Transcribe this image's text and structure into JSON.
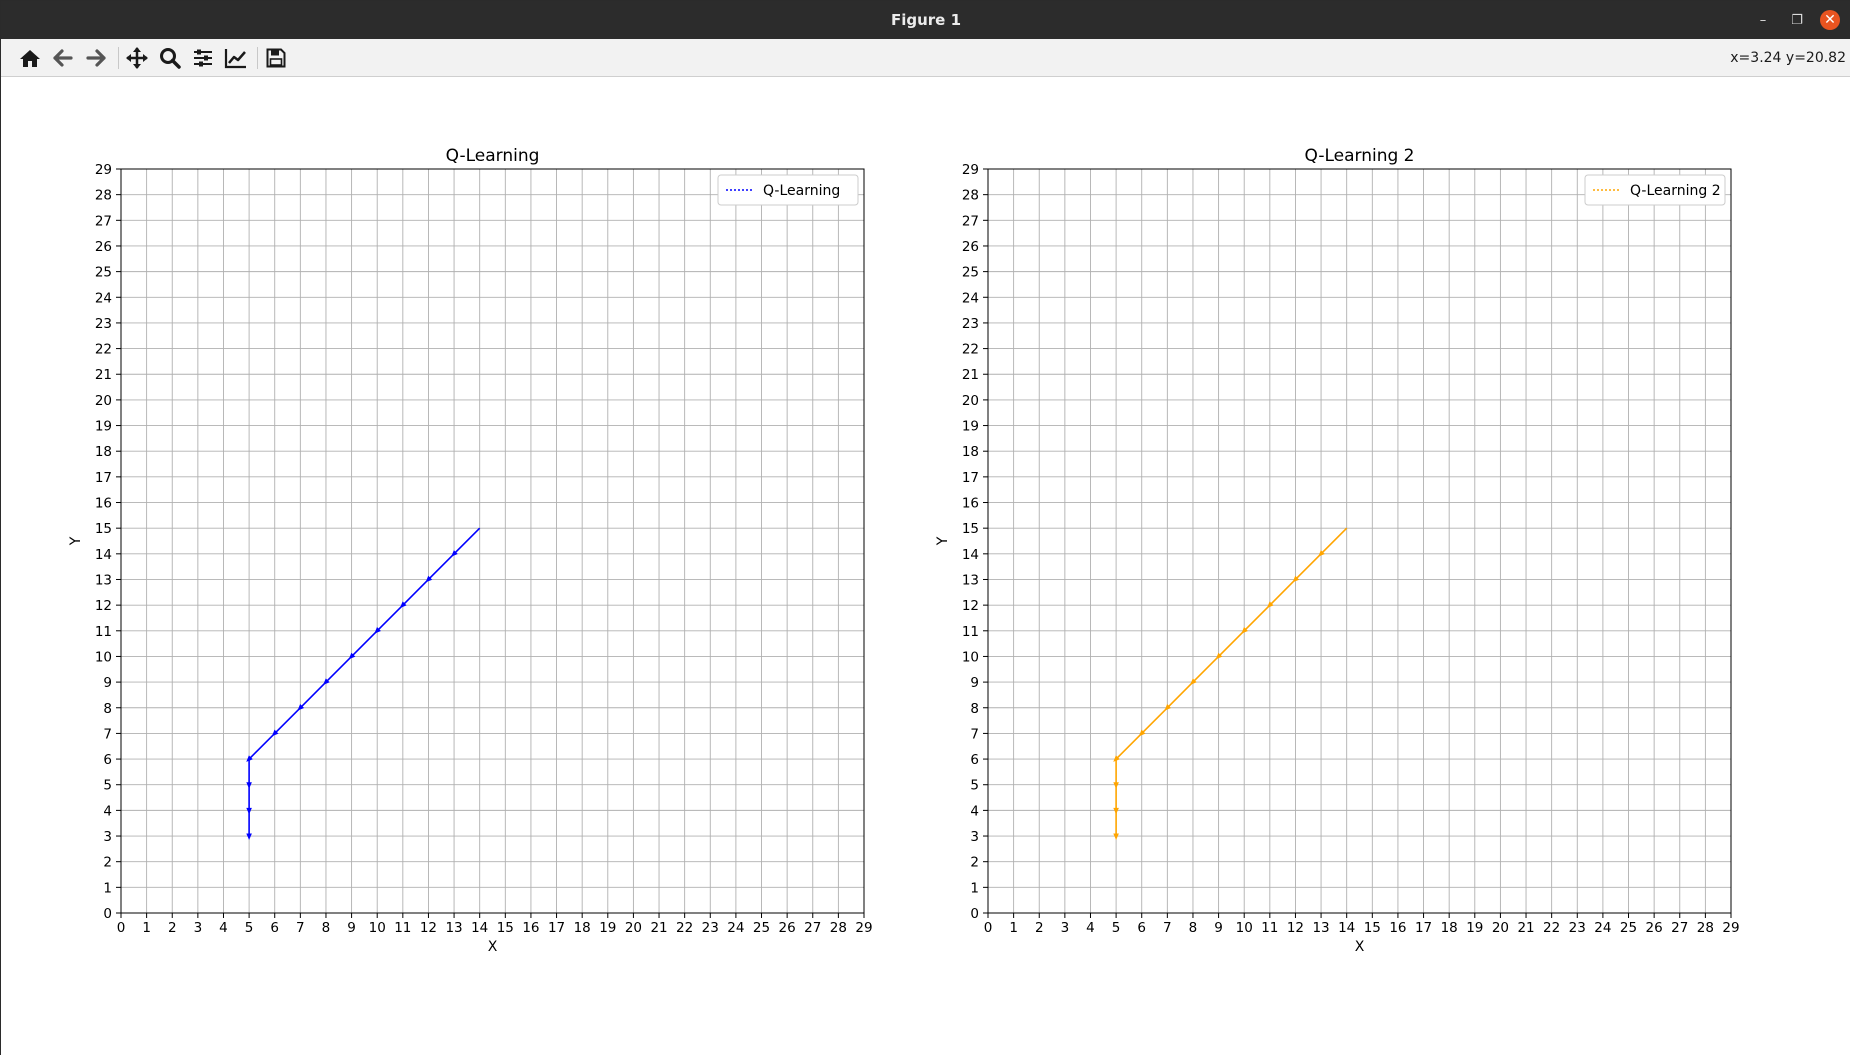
{
  "window": {
    "title": "Figure 1"
  },
  "toolbar": {
    "buttons": [
      {
        "icon": "home-icon"
      },
      {
        "icon": "back-arrow-icon"
      },
      {
        "icon": "forward-arrow-icon"
      },
      {
        "icon": "pan-icon"
      },
      {
        "icon": "zoom-icon"
      },
      {
        "icon": "configure-subplots-icon"
      },
      {
        "icon": "edit-axes-icon"
      },
      {
        "icon": "save-icon"
      }
    ],
    "coords": "x=3.24 y=20.82"
  },
  "chart_data": [
    {
      "type": "line",
      "title": "Q-Learning",
      "xlabel": "X",
      "ylabel": "Y",
      "xlim": [
        0,
        29
      ],
      "ylim": [
        0,
        29
      ],
      "grid": true,
      "legend_position": "top-right",
      "series": [
        {
          "name": "Q-Learning",
          "color": "#0000ff",
          "x": [
            5,
            5,
            5,
            5,
            6,
            7,
            8,
            9,
            10,
            11,
            12,
            13,
            14
          ],
          "y": [
            3,
            4,
            5,
            6,
            7,
            8,
            9,
            10,
            11,
            12,
            13,
            14,
            15
          ]
        }
      ]
    },
    {
      "type": "line",
      "title": "Q-Learning 2",
      "xlabel": "X",
      "ylabel": "Y",
      "xlim": [
        0,
        29
      ],
      "ylim": [
        0,
        29
      ],
      "grid": true,
      "legend_position": "top-right",
      "series": [
        {
          "name": "Q-Learning 2",
          "color": "#ffa500",
          "x": [
            5,
            5,
            5,
            5,
            6,
            7,
            8,
            9,
            10,
            11,
            12,
            13,
            14
          ],
          "y": [
            3,
            4,
            5,
            6,
            7,
            8,
            9,
            10,
            11,
            12,
            13,
            14,
            15
          ]
        }
      ]
    }
  ]
}
